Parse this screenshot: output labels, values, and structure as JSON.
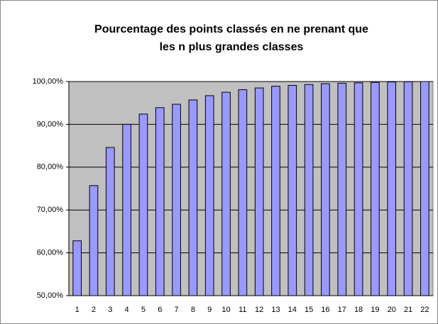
{
  "chart_data": {
    "type": "bar",
    "title": [
      "Pourcentage des points classés en ne prenant que",
      "les n plus grandes classes"
    ],
    "categories": [
      "1",
      "2",
      "3",
      "4",
      "5",
      "6",
      "7",
      "8",
      "9",
      "10",
      "11",
      "12",
      "13",
      "14",
      "15",
      "16",
      "17",
      "18",
      "19",
      "20",
      "21",
      "22"
    ],
    "values": [
      62.8,
      75.7,
      84.6,
      90.0,
      92.4,
      93.9,
      94.7,
      95.7,
      96.7,
      97.5,
      98.1,
      98.5,
      98.9,
      99.1,
      99.3,
      99.5,
      99.6,
      99.7,
      99.8,
      99.9,
      99.95,
      100
    ],
    "color": "#9999ff",
    "ylim": [
      50,
      100
    ],
    "yticks": [
      {
        "value": 50,
        "label": "50,00%"
      },
      {
        "value": 60,
        "label": "60,00%"
      },
      {
        "value": 70,
        "label": "70,00%"
      },
      {
        "value": 80,
        "label": "80,00%"
      },
      {
        "value": 90,
        "label": "90,00%"
      },
      {
        "value": 100,
        "label": "100,00%"
      }
    ],
    "grid": true
  }
}
